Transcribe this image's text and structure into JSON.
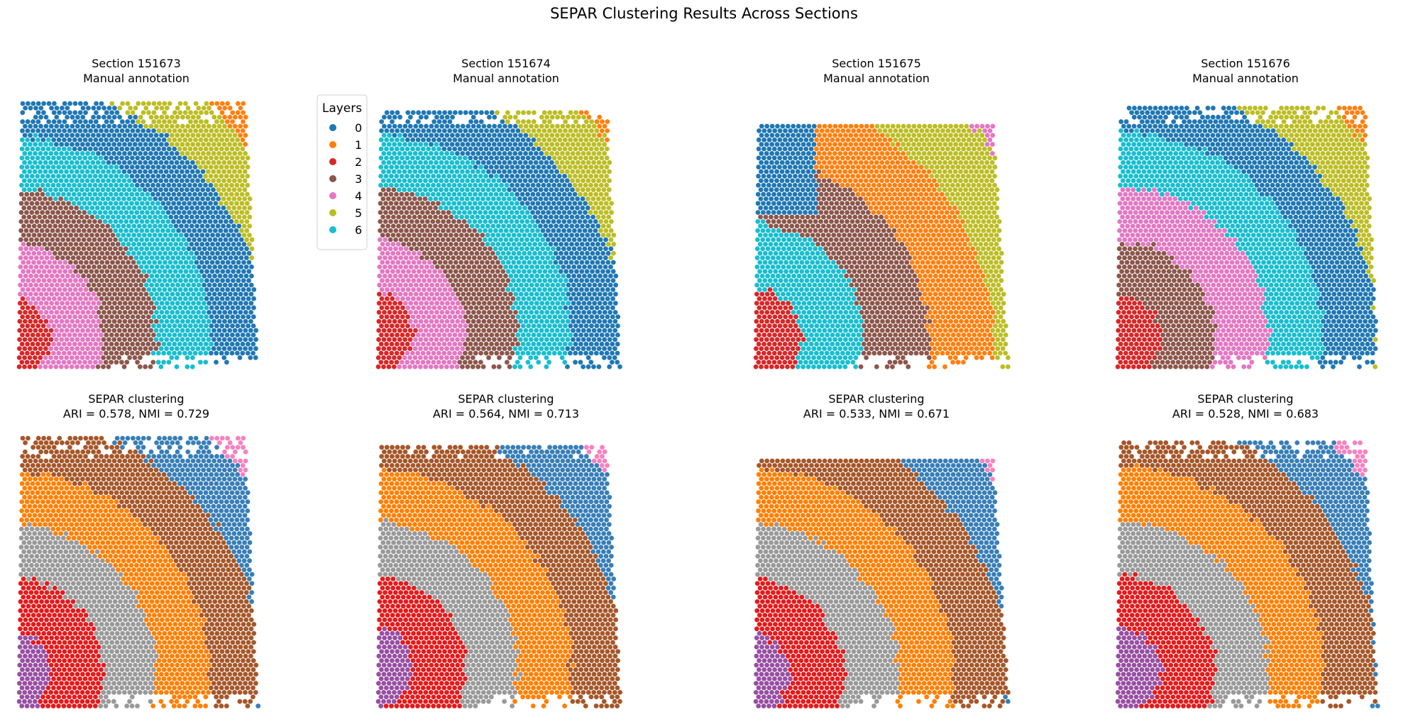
{
  "figure": {
    "title": "SEPAR Clustering Results Across Sections"
  },
  "legend": {
    "title": "Layers",
    "placement": "right of first panel",
    "entries": [
      {
        "label": "0",
        "color": "#1f77b4"
      },
      {
        "label": "1",
        "color": "#ff7f0e"
      },
      {
        "label": "2",
        "color": "#d62728"
      },
      {
        "label": "3",
        "color": "#8c564b"
      },
      {
        "label": "4",
        "color": "#e377c2"
      },
      {
        "label": "5",
        "color": "#bcbd22"
      },
      {
        "label": "6",
        "color": "#17becf"
      }
    ]
  },
  "cluster_palette": {
    "pink": "#f781bf",
    "brown": "#a65628",
    "orange": "#ff7f00",
    "gray": "#999999",
    "red": "#e41a1c",
    "purple": "#984ea3",
    "blue": "#377eb8"
  },
  "chart_data": [
    {
      "type": "scatter",
      "section": "151673",
      "title_line1": "Section 151673",
      "title_line2": "Manual annotation",
      "color_scheme": "layers",
      "order": [
        "1",
        "5",
        "0",
        "6",
        "3",
        "4",
        "2"
      ],
      "axes": "off"
    },
    {
      "type": "scatter",
      "section": "151674",
      "title_line1": "Section 151674",
      "title_line2": "Manual annotation",
      "color_scheme": "layers",
      "order": [
        "1",
        "5",
        "0",
        "6",
        "3",
        "4",
        "2"
      ],
      "axes": "off"
    },
    {
      "type": "scatter",
      "section": "151675",
      "title_line1": "Section 151675",
      "title_line2": "Manual annotation",
      "color_scheme": "layers",
      "order": [
        "4",
        "5",
        "1",
        "3",
        "6",
        "2"
      ],
      "extra_top_left_cluster": "0",
      "axes": "off"
    },
    {
      "type": "scatter",
      "section": "151676",
      "title_line1": "Section 151676",
      "title_line2": "Manual annotation",
      "color_scheme": "layers",
      "order": [
        "1",
        "5",
        "0",
        "6",
        "4",
        "3",
        "2"
      ],
      "axes": "off"
    },
    {
      "type": "scatter",
      "section": "151673",
      "title_line1": "SEPAR clustering",
      "title_line2": "ARI = 0.578, NMI = 0.729",
      "ARI": 0.578,
      "NMI": 0.729,
      "color_scheme": "clusters",
      "order": [
        "pink",
        "blue",
        "brown",
        "orange",
        "gray",
        "red",
        "purple"
      ],
      "axes": "off"
    },
    {
      "type": "scatter",
      "section": "151674",
      "title_line1": "SEPAR clustering",
      "title_line2": "ARI = 0.564, NMI = 0.713",
      "ARI": 0.564,
      "NMI": 0.713,
      "color_scheme": "clusters",
      "order": [
        "pink",
        "blue",
        "brown",
        "orange",
        "gray",
        "red",
        "purple"
      ],
      "axes": "off"
    },
    {
      "type": "scatter",
      "section": "151675",
      "title_line1": "SEPAR clustering",
      "title_line2": "ARI = 0.533, NMI = 0.671",
      "ARI": 0.533,
      "NMI": 0.671,
      "color_scheme": "clusters",
      "order": [
        "pink",
        "blue",
        "brown",
        "orange",
        "gray",
        "red",
        "purple"
      ],
      "axes": "off"
    },
    {
      "type": "scatter",
      "section": "151676",
      "title_line1": "SEPAR clustering",
      "title_line2": "ARI = 0.528, NMI = 0.683",
      "ARI": 0.528,
      "NMI": 0.683,
      "color_scheme": "clusters",
      "order": [
        "pink",
        "blue",
        "brown",
        "orange",
        "gray",
        "red",
        "purple"
      ],
      "axes": "off"
    }
  ]
}
